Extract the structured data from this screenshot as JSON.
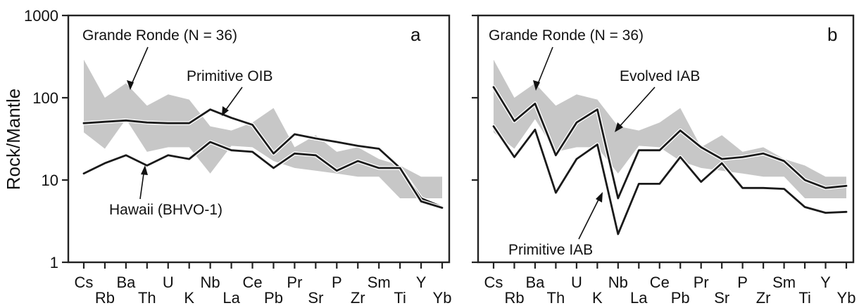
{
  "chart_data": {
    "type": "line",
    "ylabel": "Rock/Mantle",
    "yscale": "log",
    "ylim": [
      1,
      1000
    ],
    "yticks": [
      "1",
      "10",
      "100",
      "1000"
    ],
    "categories": [
      "Cs",
      "Rb",
      "Ba",
      "Th",
      "U",
      "K",
      "Nb",
      "La",
      "Ce",
      "Pb",
      "Pr",
      "Sr",
      "P",
      "Zr",
      "Sm",
      "Ti",
      "Y",
      "Yb"
    ],
    "colors": {
      "band": "#c7c7c7",
      "line": "#1a1a1a",
      "frame": "#222222"
    },
    "panels": [
      {
        "panel_label": "a",
        "band": {
          "name": "Grande Ronde (N = 36)",
          "upper": [
            290,
            100,
            150,
            80,
            110,
            95,
            45,
            40,
            50,
            75,
            25,
            35,
            22,
            25,
            18,
            15,
            11,
            11
          ],
          "lower": [
            38,
            24,
            55,
            22,
            25,
            25,
            12,
            26,
            25,
            17,
            14,
            13,
            12,
            11,
            11,
            6,
            6,
            6
          ]
        },
        "series": [
          {
            "name": "Primitive OIB",
            "values": [
              49,
              51,
              53,
              50,
              49,
              49,
              72,
              57,
              47,
              21,
              36,
              32,
              29,
              26,
              24,
              14,
              6,
              4.7
            ]
          },
          {
            "name": "Hawaii (BHVO-1)",
            "values": [
              12,
              16,
              20,
              15,
              20,
              18,
              29,
              23,
              22,
              14,
              21,
              20,
              13,
              17,
              14,
              14,
              5.5,
              4.6
            ]
          }
        ],
        "annotations": [
          "Grande Ronde (N = 36)",
          "Primitive OIB",
          "Hawaii (BHVO-1)"
        ]
      },
      {
        "panel_label": "b",
        "band": {
          "name": "Grande Ronde (N = 36)",
          "upper": [
            290,
            100,
            150,
            80,
            110,
            95,
            45,
            40,
            50,
            75,
            25,
            35,
            22,
            25,
            18,
            15,
            11,
            11
          ],
          "lower": [
            38,
            24,
            55,
            22,
            25,
            25,
            12,
            26,
            25,
            17,
            14,
            13,
            12,
            11,
            11,
            6,
            6,
            6
          ]
        },
        "series": [
          {
            "name": "Evolved IAB",
            "values": [
              135,
              52,
              85,
              20,
              50,
              72,
              6,
              23,
              23,
              40,
              25,
              18,
              19,
              21,
              17,
              10,
              8,
              8.5
            ]
          },
          {
            "name": "Primitive IAB",
            "values": [
              45,
              19,
              41,
              7,
              18,
              27,
              2.2,
              9,
              9,
              19,
              9.5,
              16,
              8,
              8,
              7.8,
              4.7,
              4,
              4.1
            ]
          }
        ],
        "annotations": [
          "Grande Ronde (N = 36)",
          "Evolved IAB",
          "Primitive IAB"
        ]
      }
    ]
  }
}
